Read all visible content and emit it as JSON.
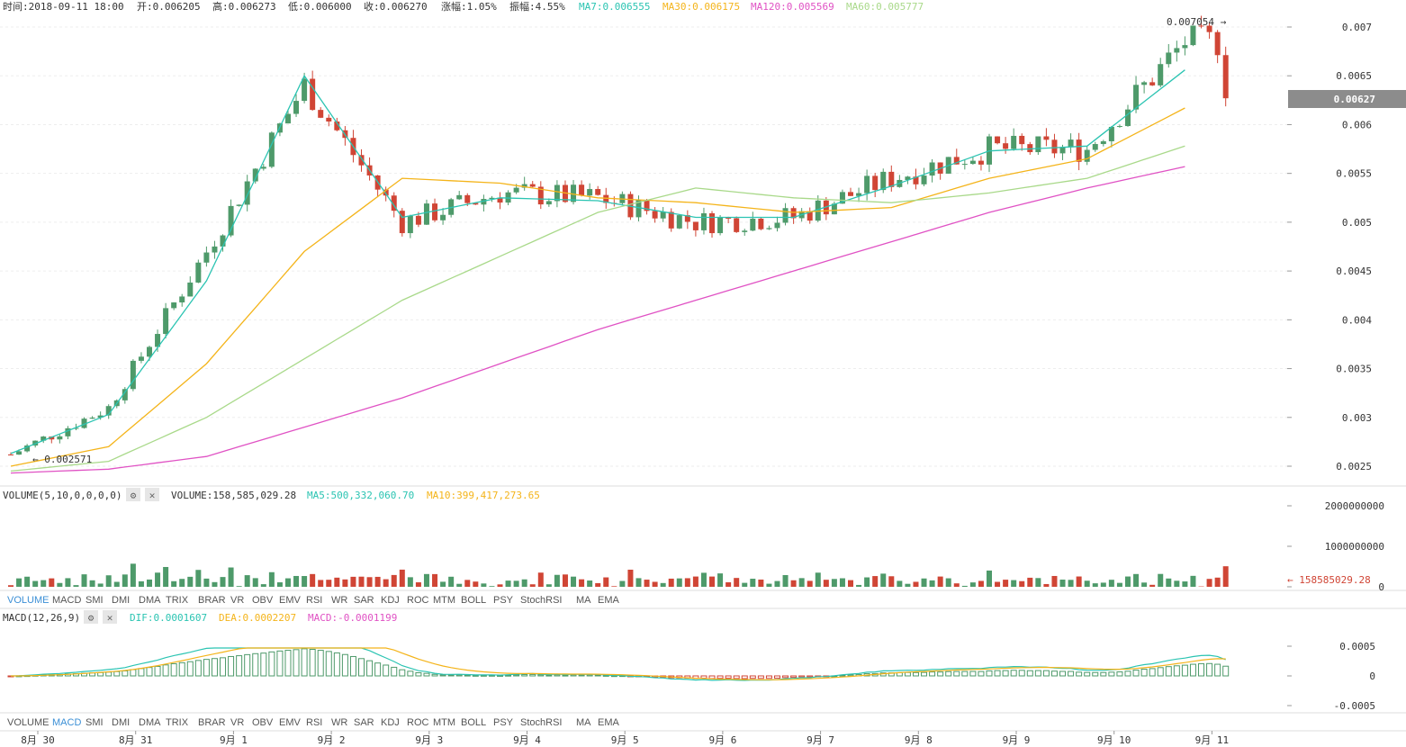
{
  "info_bar": {
    "time": "时间:2018-09-11 18:00",
    "open": "开:0.006205",
    "high": "高:0.006273",
    "low": "低:0.006000",
    "close": "收:0.006270",
    "change": "涨幅:1.05%",
    "amplitude": "振幅:4.55%",
    "ma7": "MA7:0.006555",
    "ma30": "MA30:0.006175",
    "ma120": "MA120:0.005569",
    "ma60": "MA60:0.005777"
  },
  "price_panel": {
    "current_price": "0.00627",
    "max_label": "0.007054 →",
    "min_label": "← 0.002571",
    "ticks": [
      "0.007",
      "0.0065",
      "0.006",
      "0.0055",
      "0.005",
      "0.0045",
      "0.004",
      "0.0035",
      "0.003",
      "0.0025"
    ]
  },
  "volume_panel": {
    "indicator": "VOLUME(5,10,0,0,0,0)",
    "volume": "VOLUME:158,585,029.28",
    "ma5": "MA5:500,332,060.70",
    "ma10": "MA10:399,417,273.65",
    "ticks": [
      "2000000000",
      "1000000000",
      "0"
    ],
    "current_label": "← 158585029.28"
  },
  "macd_panel": {
    "indicator": "MACD(12,26,9)",
    "dif": "DIF:0.0001607",
    "dea": "DEA:0.0002207",
    "macd": "MACD:-0.0001199",
    "ticks": [
      "0.0005",
      "0",
      "-0.0005"
    ]
  },
  "tabs": [
    "VOLUME",
    "MACD",
    "SMI",
    "DMI",
    "DMA",
    "TRIX",
    "BRAR",
    "VR",
    "OBV",
    "EMV",
    "RSI",
    "WR",
    "SAR",
    "KDJ",
    "ROC",
    "MTM",
    "BOLL",
    "PSY",
    "StochRSI",
    "MA",
    "EMA"
  ],
  "tabs_active_1": "VOLUME",
  "tabs_active_2": "MACD",
  "x_labels": [
    "8月 30",
    "8月 31",
    "9月 1",
    "9月 2",
    "9月 3",
    "9月 4",
    "9月 5",
    "9月 6",
    "9月 7",
    "9月 8",
    "9月 9",
    "9月 10",
    "9月 11"
  ],
  "colors": {
    "up": "#4e9a6a",
    "down": "#d04535",
    "ma7": "#2bc4b2",
    "ma30": "#f4b41a",
    "ma60": "#a9d98a",
    "ma120": "#e052c4",
    "price_tag": "#8c8c8c"
  },
  "chart_data": {
    "type": "candlestick",
    "interval": "2h",
    "x": [
      "8月 30",
      "8月 31",
      "9月 1",
      "9月 2",
      "9月 3",
      "9月 4",
      "9月 5",
      "9月 6",
      "9月 7",
      "9月 8",
      "9月 9",
      "9月 10",
      "9月 11"
    ],
    "close_anchor": [
      0.00262,
      0.0031,
      0.0047,
      0.0064,
      0.005,
      0.0053,
      0.00525,
      0.005,
      0.00505,
      0.00545,
      0.00575,
      0.00575,
      0.00685
    ],
    "ma7_anchor": [
      0.00263,
      0.00303,
      0.0044,
      0.0065,
      0.00505,
      0.00525,
      0.00522,
      0.00505,
      0.00505,
      0.00537,
      0.00573,
      0.00578,
      0.00656
    ],
    "ma30_anchor": [
      0.0025,
      0.0027,
      0.00355,
      0.0047,
      0.00545,
      0.0054,
      0.00525,
      0.0052,
      0.0051,
      0.00515,
      0.00545,
      0.00565,
      0.00617
    ],
    "ma60_anchor": [
      0.00245,
      0.00255,
      0.003,
      0.0036,
      0.0042,
      0.00465,
      0.0051,
      0.00535,
      0.00525,
      0.0052,
      0.0053,
      0.00545,
      0.00578
    ],
    "ma120_anchor": [
      0.00243,
      0.00247,
      0.0026,
      0.0029,
      0.0032,
      0.00355,
      0.0039,
      0.0042,
      0.0045,
      0.0048,
      0.0051,
      0.00535,
      0.00557
    ],
    "high": 0.007054,
    "low": 0.002571,
    "last_close": 0.00627,
    "ylim": [
      0.00235,
      0.0072
    ],
    "volume_ylim": [
      0,
      2000000000
    ],
    "macd_ylim": [
      -0.0005,
      0.0005
    ]
  }
}
